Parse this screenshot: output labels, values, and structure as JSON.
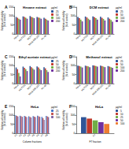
{
  "chart_data": [
    {
      "type": "bar",
      "annotation": "A",
      "title": "Hexane extract",
      "ylabel": "Relative cell viability\n(% of control)",
      "categories": [
        "HeLa",
        "HCT116",
        "MCF7",
        "MDA-MB-231",
        "HL-60"
      ],
      "series": [
        {
          "name": "25",
          "color": "#2f5597",
          "values": [
            95,
            98,
            100,
            95,
            90
          ]
        },
        {
          "name": "50",
          "color": "#c0392b",
          "values": [
            90,
            95,
            95,
            92,
            85
          ]
        },
        {
          "name": "100",
          "color": "#70ad47",
          "values": [
            85,
            90,
            92,
            90,
            80
          ]
        },
        {
          "name": "200",
          "color": "#7030a0",
          "values": [
            80,
            85,
            88,
            85,
            75
          ]
        }
      ],
      "ylim": [
        0,
        150
      ],
      "yticks": [
        0,
        50,
        100,
        150
      ],
      "legend": "right",
      "legend_title": "µg/ml"
    },
    {
      "type": "bar",
      "annotation": "B",
      "title": "DCM extract",
      "ylabel": "Relative cell viability\n(% of control)",
      "categories": [
        "HeLa",
        "HCT116",
        "MCF7",
        "MDA-MB-231",
        "HL-60"
      ],
      "series": [
        {
          "name": "25",
          "color": "#2f5597",
          "values": [
            95,
            97,
            98,
            96,
            92
          ]
        },
        {
          "name": "50",
          "color": "#c0392b",
          "values": [
            88,
            92,
            94,
            90,
            85
          ]
        },
        {
          "name": "100",
          "color": "#70ad47",
          "values": [
            80,
            85,
            88,
            84,
            78
          ]
        },
        {
          "name": "200",
          "color": "#7030a0",
          "values": [
            70,
            78,
            80,
            75,
            68
          ]
        }
      ],
      "ylim": [
        0,
        150
      ],
      "yticks": [
        0,
        50,
        100,
        150
      ],
      "legend": "right",
      "legend_title": "µg/ml"
    },
    {
      "type": "bar",
      "annotation": "C",
      "title": "Ethyl acetate extract",
      "ylabel": "Relative cell viability\n(% of control)",
      "categories": [
        "HeLa",
        "HCT116",
        "MCF7",
        "MDA-MB-231",
        "HL-60"
      ],
      "series": [
        {
          "name": "25",
          "color": "#2f5597",
          "values": [
            90,
            95,
            98,
            96,
            92
          ]
        },
        {
          "name": "50",
          "color": "#c0392b",
          "values": [
            80,
            88,
            92,
            90,
            85
          ]
        },
        {
          "name": "100",
          "color": "#70ad47",
          "values": [
            60,
            80,
            85,
            82,
            75
          ]
        },
        {
          "name": "200",
          "color": "#7030a0",
          "values": [
            40,
            70,
            78,
            75,
            65
          ]
        }
      ],
      "ylim": [
        0,
        150
      ],
      "yticks": [
        0,
        50,
        100,
        150
      ],
      "legend": "right",
      "legend_title": "µg/ml"
    },
    {
      "type": "bar",
      "annotation": "D",
      "title": "Methanol extract",
      "ylabel": "Relative cell viability\n(% of control)",
      "categories": [
        "HeLa",
        "HCT116",
        "MCF7",
        "MDA-MB-231",
        "HL-60"
      ],
      "series": [
        {
          "name": "25",
          "color": "#2f5597",
          "values": [
            100,
            100,
            102,
            100,
            98
          ]
        },
        {
          "name": "50",
          "color": "#c0392b",
          "values": [
            98,
            98,
            100,
            98,
            95
          ]
        },
        {
          "name": "100",
          "color": "#70ad47",
          "values": [
            95,
            96,
            98,
            95,
            92
          ]
        },
        {
          "name": "200",
          "color": "#7030a0",
          "values": [
            90,
            92,
            95,
            92,
            88
          ]
        }
      ],
      "ylim": [
        0,
        150
      ],
      "yticks": [
        0,
        50,
        100,
        150
      ],
      "legend": "right",
      "legend_title": "µg/ml"
    },
    {
      "type": "bar",
      "annotation": "E",
      "title": "HeLa",
      "ylabel": "Relative cell viability\n(% of control)",
      "xlabel": "Column fractions",
      "categories": [
        "F1",
        "F2",
        "F3",
        "F4",
        "F5",
        "F6",
        "F7",
        "F8"
      ],
      "series": [
        {
          "name": "25",
          "color": "#4472c4",
          "values": [
            100,
            98,
            97,
            95,
            96,
            98,
            92,
            97
          ]
        },
        {
          "name": "50",
          "color": "#c0504d",
          "values": [
            97,
            95,
            94,
            92,
            93,
            95,
            85,
            94
          ]
        },
        {
          "name": "100",
          "color": "#8064a2",
          "values": [
            94,
            92,
            90,
            88,
            90,
            92,
            75,
            90
          ]
        }
      ],
      "ylim": [
        0,
        150
      ],
      "yticks": [
        0,
        50,
        100,
        150
      ],
      "legend": "right",
      "legend_title": "µg/ml"
    },
    {
      "type": "bar",
      "annotation": "F",
      "title": "HeLa",
      "ylabel": "Relative cell viability\n(% of control)",
      "xlabel": "F7 fraction",
      "categories": [
        "F7"
      ],
      "series": [
        {
          "name": "5",
          "color": "#2f5597",
          "values": [
            90
          ]
        },
        {
          "name": "10",
          "color": "#c0392b",
          "values": [
            82
          ]
        },
        {
          "name": "25",
          "color": "#70ad47",
          "values": [
            72
          ]
        },
        {
          "name": "50",
          "color": "#7030a0",
          "values": [
            62
          ]
        },
        {
          "name": "100",
          "color": "#ed7d31",
          "values": [
            52
          ]
        }
      ],
      "ylim": [
        0,
        150
      ],
      "yticks": [
        0,
        50,
        100,
        150
      ],
      "legend": "right",
      "legend_title": "µg/ml"
    }
  ]
}
